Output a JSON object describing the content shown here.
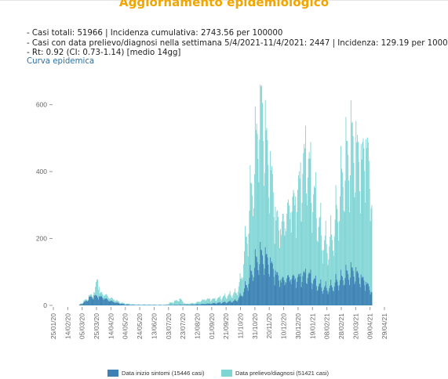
{
  "page": {
    "title": "Aggiornamento epidemiologico",
    "stats": [
      "- Casi totali: 51966 | Incidenza cumulativa: 2743.56 per 100000",
      "- Casi con data prelievo/diagnosi nella settimana 5/4/2021-11/4/2021: 2447 | Incidenza: 129.19 per 100000",
      "- Rt: 0.92 (CI: 0.73-1.14) [medio 14gg]"
    ],
    "curve_link": "Curva epidemica"
  },
  "colors": {
    "title": "#f0a500",
    "series_onset": "#3d80b4",
    "series_diagnosis": "#7fd4d4",
    "link": "#2f6f9e"
  },
  "chart_data": {
    "type": "bar",
    "stacked": false,
    "x_start": "2020-01-25",
    "x_end": "2021-04-29",
    "x_ticks": [
      "25/01/20",
      "14/02/20",
      "05/03/20",
      "25/03/20",
      "14/04/20",
      "04/05/20",
      "24/05/20",
      "13/06/20",
      "03/07/20",
      "23/07/20",
      "12/08/20",
      "01/09/20",
      "21/09/20",
      "11/10/20",
      "31/10/20",
      "20/11/20",
      "10/12/20",
      "30/12/20",
      "19/01/21",
      "08/02/21",
      "28/02/21",
      "20/03/21",
      "09/04/21",
      "29/04/21"
    ],
    "y_ticks": [
      0,
      200,
      400,
      600
    ],
    "ylim": [
      0,
      660
    ],
    "grid": false,
    "legend_position": "bottom",
    "series": [
      {
        "name": "Data inizio sintomi (15446 casi)",
        "color": "#3d80b4",
        "points": [
          [
            "2020-03-01",
            2
          ],
          [
            "2020-03-08",
            10
          ],
          [
            "2020-03-15",
            25
          ],
          [
            "2020-03-22",
            30
          ],
          [
            "2020-03-29",
            28
          ],
          [
            "2020-04-05",
            22
          ],
          [
            "2020-04-12",
            15
          ],
          [
            "2020-04-19",
            10
          ],
          [
            "2020-04-26",
            6
          ],
          [
            "2020-05-03",
            3
          ],
          [
            "2020-05-17",
            1
          ],
          [
            "2020-06-28",
            1
          ],
          [
            "2020-07-26",
            2
          ],
          [
            "2020-08-09",
            3
          ],
          [
            "2020-08-23",
            5
          ],
          [
            "2020-09-06",
            7
          ],
          [
            "2020-09-20",
            10
          ],
          [
            "2020-10-04",
            15
          ],
          [
            "2020-10-11",
            30
          ],
          [
            "2020-10-18",
            60
          ],
          [
            "2020-10-25",
            100
          ],
          [
            "2020-11-01",
            140
          ],
          [
            "2020-11-08",
            160
          ],
          [
            "2020-11-15",
            150
          ],
          [
            "2020-11-22",
            130
          ],
          [
            "2020-11-29",
            100
          ],
          [
            "2020-12-06",
            80
          ],
          [
            "2020-12-13",
            85
          ],
          [
            "2020-12-20",
            90
          ],
          [
            "2020-12-27",
            85
          ],
          [
            "2021-01-03",
            95
          ],
          [
            "2021-01-10",
            100
          ],
          [
            "2021-01-17",
            90
          ],
          [
            "2021-01-24",
            70
          ],
          [
            "2021-01-31",
            60
          ],
          [
            "2021-02-07",
            55
          ],
          [
            "2021-02-14",
            60
          ],
          [
            "2021-02-21",
            75
          ],
          [
            "2021-02-28",
            85
          ],
          [
            "2021-03-07",
            100
          ],
          [
            "2021-03-14",
            110
          ],
          [
            "2021-03-21",
            100
          ],
          [
            "2021-03-28",
            85
          ],
          [
            "2021-04-04",
            70
          ],
          [
            "2021-04-11",
            40
          ]
        ]
      },
      {
        "name": "Data prelievo/diagnosi (51421 casi)",
        "color": "#7fd4d4",
        "points": [
          [
            "2020-03-01",
            3
          ],
          [
            "2020-03-08",
            15
          ],
          [
            "2020-03-15",
            30
          ],
          [
            "2020-03-22",
            40
          ],
          [
            "2020-03-26",
            95
          ],
          [
            "2020-03-29",
            40
          ],
          [
            "2020-04-05",
            35
          ],
          [
            "2020-04-12",
            25
          ],
          [
            "2020-04-19",
            18
          ],
          [
            "2020-04-26",
            10
          ],
          [
            "2020-05-03",
            6
          ],
          [
            "2020-05-17",
            3
          ],
          [
            "2020-06-28",
            2
          ],
          [
            "2020-07-19",
            20
          ],
          [
            "2020-07-26",
            5
          ],
          [
            "2020-08-09",
            8
          ],
          [
            "2020-08-23",
            20
          ],
          [
            "2020-09-06",
            20
          ],
          [
            "2020-09-20",
            30
          ],
          [
            "2020-10-04",
            40
          ],
          [
            "2020-10-11",
            80
          ],
          [
            "2020-10-18",
            200
          ],
          [
            "2020-10-25",
            350
          ],
          [
            "2020-11-01",
            500
          ],
          [
            "2020-11-05",
            635
          ],
          [
            "2020-11-10",
            630
          ],
          [
            "2020-11-15",
            520
          ],
          [
            "2020-11-22",
            420
          ],
          [
            "2020-11-29",
            280
          ],
          [
            "2020-12-06",
            250
          ],
          [
            "2020-12-13",
            290
          ],
          [
            "2020-12-20",
            320
          ],
          [
            "2020-12-27",
            340
          ],
          [
            "2021-01-03",
            420
          ],
          [
            "2021-01-10",
            490
          ],
          [
            "2021-01-17",
            400
          ],
          [
            "2021-01-24",
            310
          ],
          [
            "2021-01-31",
            230
          ],
          [
            "2021-02-07",
            190
          ],
          [
            "2021-02-14",
            210
          ],
          [
            "2021-02-21",
            290
          ],
          [
            "2021-02-28",
            390
          ],
          [
            "2021-03-07",
            470
          ],
          [
            "2021-03-14",
            530
          ],
          [
            "2021-03-21",
            490
          ],
          [
            "2021-03-28",
            460
          ],
          [
            "2021-04-04",
            530
          ],
          [
            "2021-04-11",
            300
          ]
        ]
      }
    ]
  }
}
